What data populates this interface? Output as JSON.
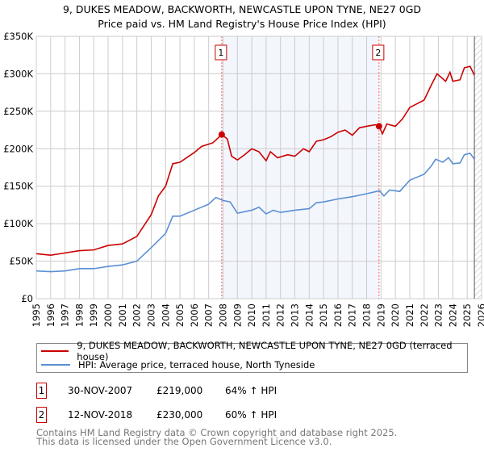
{
  "chart_data": {
    "type": "line",
    "title": "9, DUKES MEADOW, BACKWORTH, NEWCASTLE UPON TYNE, NE27 0GD",
    "subtitle": "Price paid vs. HM Land Registry's House Price Index (HPI)",
    "xlim": [
      1995,
      2026
    ],
    "ylim": [
      0,
      350000
    ],
    "y_ticks": [
      {
        "v": 0,
        "label": "£0"
      },
      {
        "v": 50000,
        "label": "£50K"
      },
      {
        "v": 100000,
        "label": "£100K"
      },
      {
        "v": 150000,
        "label": "£150K"
      },
      {
        "v": 200000,
        "label": "£200K"
      },
      {
        "v": 250000,
        "label": "£250K"
      },
      {
        "v": 300000,
        "label": "£300K"
      },
      {
        "v": 350000,
        "label": "£350K"
      }
    ],
    "x_ticks": [
      "1995",
      "1996",
      "1997",
      "1998",
      "1999",
      "2000",
      "2001",
      "2002",
      "2003",
      "2004",
      "2005",
      "2006",
      "2007",
      "2008",
      "2009",
      "2010",
      "2011",
      "2012",
      "2013",
      "2014",
      "2015",
      "2016",
      "2017",
      "2018",
      "2019",
      "2020",
      "2021",
      "2022",
      "2023",
      "2024",
      "2025",
      "2026"
    ],
    "grid": true,
    "shaded_range": [
      2007.91,
      2018.86
    ],
    "forecast_from": 2025.5,
    "series": [
      {
        "name": "9, DUKES MEADOW, BACKWORTH, NEWCASTLE UPON TYNE, NE27 0GD (terraced house)",
        "color": "#cc0000",
        "x": [
          1995,
          1996,
          1997,
          1998,
          1999,
          2000,
          2001,
          2002,
          2003,
          2003.5,
          2004,
          2004.5,
          2005,
          2006,
          2006.5,
          2007.3,
          2007.91,
          2008.3,
          2008.6,
          2009,
          2009.5,
          2010,
          2010.5,
          2011,
          2011.3,
          2011.8,
          2012.5,
          2013,
          2013.6,
          2014,
          2014.5,
          2015,
          2015.5,
          2016,
          2016.5,
          2017,
          2017.5,
          2018,
          2018.6,
          2018.86,
          2019.1,
          2019.4,
          2020,
          2020.5,
          2021,
          2021.5,
          2022,
          2022.5,
          2022.9,
          2023.5,
          2023.8,
          2024,
          2024.5,
          2024.8,
          2025.2,
          2025.5
        ],
        "y": [
          60000,
          58000,
          61000,
          64000,
          65000,
          71000,
          73000,
          83000,
          112000,
          137000,
          150000,
          180000,
          182000,
          195000,
          203000,
          208000,
          219000,
          213000,
          190000,
          185000,
          192000,
          200000,
          196000,
          184000,
          196000,
          188000,
          192000,
          190000,
          200000,
          196000,
          210000,
          212000,
          216000,
          222000,
          225000,
          218000,
          228000,
          230000,
          232000,
          230000,
          220000,
          233000,
          230000,
          240000,
          255000,
          260000,
          265000,
          285000,
          300000,
          290000,
          302000,
          290000,
          292000,
          308000,
          310000,
          298000
        ]
      },
      {
        "name": "HPI: Average price, terraced house, North Tyneside",
        "color": "#5b8fd4",
        "x": [
          1995,
          1996,
          1997,
          1998,
          1999,
          2000,
          2001,
          2002,
          2003,
          2004,
          2004.5,
          2005,
          2006,
          2007,
          2007.5,
          2008,
          2008.5,
          2009,
          2010,
          2010.5,
          2011,
          2011.5,
          2012,
          2013,
          2014,
          2014.5,
          2015,
          2016,
          2017,
          2017.5,
          2018,
          2018.9,
          2019.2,
          2019.6,
          2020.3,
          2021,
          2021.5,
          2022,
          2022.5,
          2022.8,
          2023.3,
          2023.7,
          2024,
          2024.5,
          2024.8,
          2025.2,
          2025.5
        ],
        "y": [
          37000,
          36000,
          37000,
          40000,
          40000,
          43000,
          45000,
          50000,
          68000,
          87000,
          110000,
          110000,
          118000,
          126000,
          135000,
          131000,
          129000,
          114000,
          118000,
          122000,
          113000,
          118000,
          115000,
          118000,
          120000,
          128000,
          129000,
          133000,
          136000,
          138000,
          140000,
          144000,
          137000,
          145000,
          143000,
          158000,
          162000,
          166000,
          177000,
          186000,
          182000,
          188000,
          180000,
          181000,
          192000,
          194000,
          186000
        ]
      }
    ],
    "sales": [
      {
        "id": "1",
        "x": 2007.91,
        "y": 219000,
        "date": "30-NOV-2007",
        "price": "£219,000",
        "hpi": "64% ↑ HPI"
      },
      {
        "id": "2",
        "x": 2018.86,
        "y": 230000,
        "date": "12-NOV-2018",
        "price": "£230,000",
        "hpi": "60% ↑ HPI"
      }
    ]
  },
  "footer": {
    "line1": "Contains HM Land Registry data © Crown copyright and database right 2025.",
    "line2": "This data is licensed under the Open Government Licence v3.0."
  }
}
